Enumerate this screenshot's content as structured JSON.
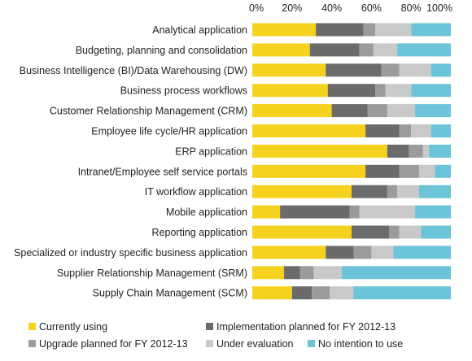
{
  "chart_data": {
    "type": "bar",
    "orientation": "horizontal",
    "stacked": true,
    "percent_stacked": true,
    "title": "",
    "xlabel": "",
    "ylabel": "",
    "xlim": [
      0,
      100
    ],
    "x_ticks": [
      "0%",
      "20%",
      "40%",
      "60%",
      "80%",
      "100%"
    ],
    "x_axis_position": "top",
    "grid": false,
    "legend_position": "bottom",
    "categories": [
      "Analytical application",
      "Budgeting, planning and consolidation",
      "Business Intelligence (BI)/Data Warehousing (DW)",
      "Business process workflows",
      "Customer Relationship Management (CRM)",
      "Employee life cycle/HR application",
      "ERP application",
      "Intranet/Employee self service portals",
      "IT workflow application",
      "Mobile application",
      "Reporting application",
      "Specialized or industry specific business application",
      "Supplier Relationship Management (SRM)",
      "Supply Chain Management (SCM)"
    ],
    "series": [
      {
        "name": "Currently using",
        "color": "#f5d21e",
        "values": [
          32,
          29,
          37,
          38,
          40,
          57,
          68,
          57,
          50,
          14,
          50,
          37,
          16,
          20
        ]
      },
      {
        "name": "Implementation planned for FY 2012-13",
        "color": "#6b6b6b",
        "values": [
          24,
          25,
          28,
          24,
          18,
          17,
          11,
          17,
          18,
          35,
          19,
          14,
          8,
          10
        ]
      },
      {
        "name": "Upgrade planned for FY 2012-13",
        "color": "#9b9b9b",
        "values": [
          6,
          7,
          9,
          5,
          10,
          6,
          7,
          10,
          5,
          5,
          5,
          9,
          7,
          9
        ]
      },
      {
        "name": "Under evaluation",
        "color": "#c9c9c9",
        "values": [
          18,
          12,
          16,
          13,
          14,
          10,
          3,
          8,
          11,
          28,
          11,
          11,
          14,
          12
        ]
      },
      {
        "name": "No intention to use",
        "color": "#6cc4d9",
        "values": [
          20,
          27,
          10,
          20,
          18,
          10,
          11,
          8,
          16,
          18,
          15,
          29,
          55,
          49
        ]
      }
    ]
  }
}
